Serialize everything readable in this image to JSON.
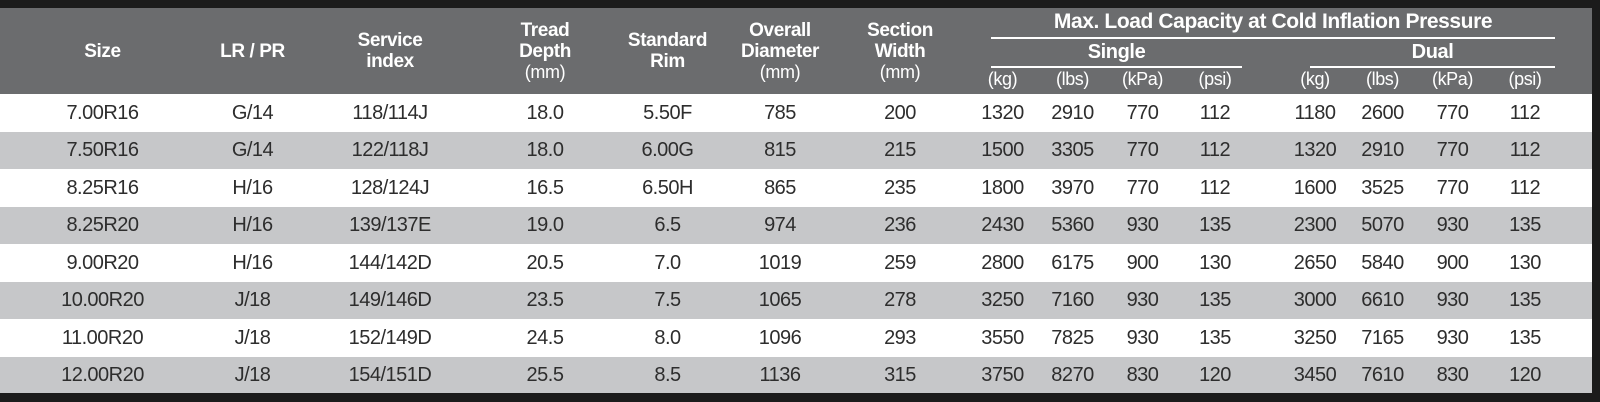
{
  "table": {
    "header": {
      "size": [
        "Size"
      ],
      "lr_pr": [
        "LR / PR"
      ],
      "service_index": [
        "Service",
        "index"
      ],
      "tread_depth": [
        "Tread",
        "Depth",
        "(mm)"
      ],
      "standard_rim": [
        "Standard",
        "Rim"
      ],
      "overall_diameter": [
        "Overall",
        "Diameter",
        "(mm)"
      ],
      "section_width": [
        "Section",
        "Width",
        "(mm)"
      ],
      "load_group_title": "Max. Load Capacity at Cold Inflation Pressure",
      "single_label": "Single",
      "dual_label": "Dual",
      "single_units": [
        "(kg)",
        "(lbs)",
        "(kPa)",
        "(psi)"
      ],
      "dual_units": [
        "(kg)",
        "(lbs)",
        "(kPa)",
        "(psi)"
      ]
    },
    "rows": [
      [
        "7.00R16",
        "G/14",
        "118/114J",
        "18.0",
        "5.50F",
        "785",
        "200",
        "1320",
        "2910",
        "770",
        "112",
        "1180",
        "2600",
        "770",
        "112"
      ],
      [
        "7.50R16",
        "G/14",
        "122/118J",
        "18.0",
        "6.00G",
        "815",
        "215",
        "1500",
        "3305",
        "770",
        "112",
        "1320",
        "2910",
        "770",
        "112"
      ],
      [
        "8.25R16",
        "H/16",
        "128/124J",
        "16.5",
        "6.50H",
        "865",
        "235",
        "1800",
        "3970",
        "770",
        "112",
        "1600",
        "3525",
        "770",
        "112"
      ],
      [
        "8.25R20",
        "H/16",
        "139/137E",
        "19.0",
        "6.5",
        "974",
        "236",
        "2430",
        "5360",
        "930",
        "135",
        "2300",
        "5070",
        "930",
        "135"
      ],
      [
        "9.00R20",
        "H/16",
        "144/142D",
        "20.5",
        "7.0",
        "1019",
        "259",
        "2800",
        "6175",
        "900",
        "130",
        "2650",
        "5840",
        "900",
        "130"
      ],
      [
        "10.00R20",
        "J/18",
        "149/146D",
        "23.5",
        "7.5",
        "1065",
        "278",
        "3250",
        "7160",
        "930",
        "135",
        "3000",
        "6610",
        "930",
        "135"
      ],
      [
        "11.00R20",
        "J/18",
        "152/149D",
        "24.5",
        "8.0",
        "1096",
        "293",
        "3550",
        "7825",
        "930",
        "135",
        "3250",
        "7165",
        "930",
        "135"
      ],
      [
        "12.00R20",
        "J/18",
        "154/151D",
        "25.5",
        "8.5",
        "1136",
        "315",
        "3750",
        "8270",
        "830",
        "120",
        "3450",
        "7610",
        "830",
        "120"
      ]
    ]
  },
  "colors": {
    "frame_bar": "#1b1b1b",
    "header_background": "#6b6c6e",
    "header_text": "#ffffff",
    "row_stripe": "#c6c7c9",
    "data_text": "#2d2d2d"
  }
}
